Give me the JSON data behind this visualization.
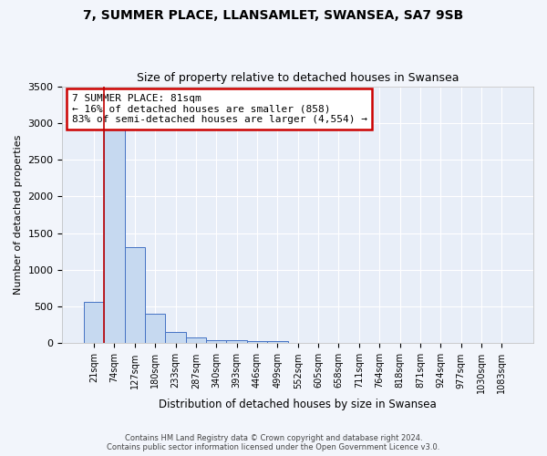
{
  "title1": "7, SUMMER PLACE, LLANSAMLET, SWANSEA, SA7 9SB",
  "title2": "Size of property relative to detached houses in Swansea",
  "xlabel": "Distribution of detached houses by size in Swansea",
  "ylabel": "Number of detached properties",
  "bar_labels": [
    "21sqm",
    "74sqm",
    "127sqm",
    "180sqm",
    "233sqm",
    "287sqm",
    "340sqm",
    "393sqm",
    "446sqm",
    "499sqm",
    "552sqm",
    "605sqm",
    "658sqm",
    "711sqm",
    "764sqm",
    "818sqm",
    "871sqm",
    "924sqm",
    "977sqm",
    "1030sqm",
    "1083sqm"
  ],
  "bar_values": [
    570,
    2930,
    1310,
    400,
    160,
    75,
    48,
    38,
    32,
    28,
    0,
    0,
    0,
    0,
    0,
    0,
    0,
    0,
    0,
    0,
    0
  ],
  "bar_color": "#c6d9f0",
  "bar_edge_color": "#4472c4",
  "annotation_text": "7 SUMMER PLACE: 81sqm\n← 16% of detached houses are smaller (858)\n83% of semi-detached houses are larger (4,554) →",
  "property_line_color": "#c00000",
  "property_line_x": 1.0,
  "ylim": [
    0,
    3500
  ],
  "yticks": [
    0,
    500,
    1000,
    1500,
    2000,
    2500,
    3000,
    3500
  ],
  "footer_text": "Contains HM Land Registry data © Crown copyright and database right 2024.\nContains public sector information licensed under the Open Government Licence v3.0.",
  "background_color": "#f2f5fb",
  "plot_bg_color": "#e8eef8",
  "grid_color": "#ffffff",
  "annotation_box_color": "#ffffff",
  "annotation_border_color": "#cc0000"
}
